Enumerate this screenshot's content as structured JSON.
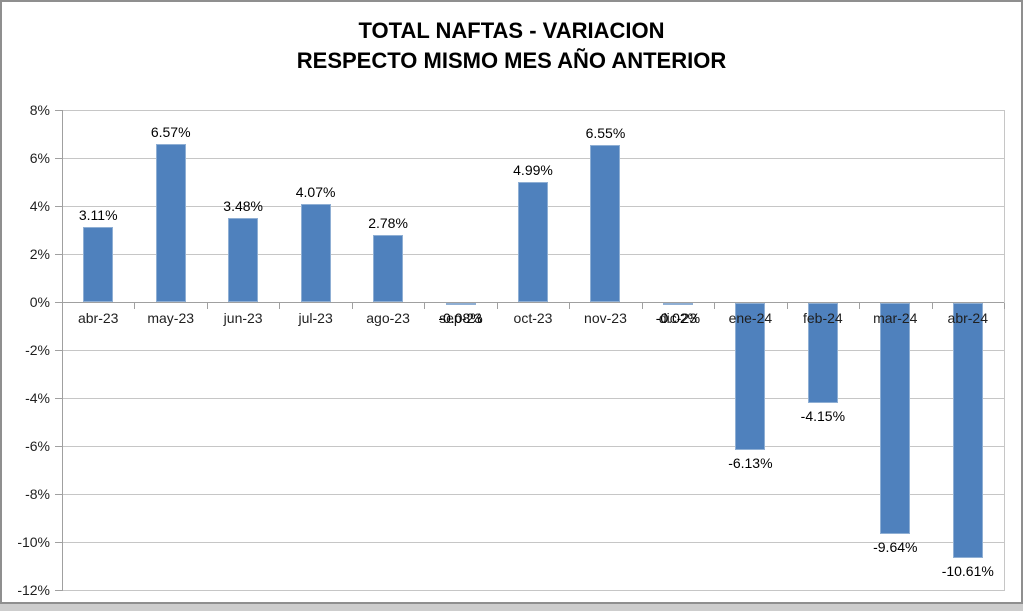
{
  "title": {
    "line1": "TOTAL NAFTAS - VARIACION",
    "line2": "RESPECTO MISMO MES AÑO ANTERIOR"
  },
  "chart_data": {
    "type": "bar",
    "title": "TOTAL NAFTAS - VARIACION RESPECTO MISMO MES AÑO ANTERIOR",
    "categories": [
      "abr-23",
      "may-23",
      "jun-23",
      "jul-23",
      "ago-23",
      "sep-23",
      "oct-23",
      "nov-23",
      "dic-23",
      "ene-24",
      "feb-24",
      "mar-24",
      "abr-24"
    ],
    "values": [
      3.11,
      6.57,
      3.48,
      4.07,
      2.78,
      -0.08,
      4.99,
      6.55,
      -0.02,
      -6.13,
      -4.15,
      -9.64,
      -10.61
    ],
    "data_labels": [
      "3.11%",
      "6.57%",
      "3.48%",
      "4.07%",
      "2.78%",
      "-0.08%",
      "4.99%",
      "6.55%",
      "-0.02%",
      "-6.13%",
      "-4.15%",
      "-9.64%",
      "-10.61%"
    ],
    "xlabel": "",
    "ylabel": "",
    "ylim": [
      -12,
      8
    ],
    "ytick_step": 2,
    "ytick_labels": [
      "8%",
      "6%",
      "4%",
      "2%",
      "0%",
      "-2%",
      "-4%",
      "-6%",
      "-8%",
      "-10%",
      "-12%"
    ],
    "grid": true,
    "legend": "none",
    "colors": {
      "bar_fill": "#4F81BD",
      "bar_border": "#8FAFD4",
      "gridline": "#C6C6C6",
      "axis_line": "#A0A0A0",
      "label_text": "#000000",
      "frame_border": "#8F8F8F",
      "bottom_strip": "#CDCDCD"
    }
  }
}
